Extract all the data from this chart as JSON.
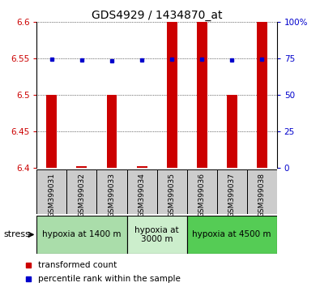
{
  "title": "GDS4929 / 1434870_at",
  "samples": [
    "GSM399031",
    "GSM399032",
    "GSM399033",
    "GSM399034",
    "GSM399035",
    "GSM399036",
    "GSM399037",
    "GSM399038"
  ],
  "red_values": [
    6.5,
    6.402,
    6.5,
    6.402,
    6.6,
    6.6,
    6.5,
    6.6
  ],
  "blue_values": [
    6.548,
    6.547,
    6.546,
    6.547,
    6.548,
    6.548,
    6.547,
    6.548
  ],
  "ymin": 6.4,
  "ymax": 6.6,
  "yticks_left": [
    6.4,
    6.45,
    6.5,
    6.55,
    6.6
  ],
  "yticks_right": [
    0,
    25,
    50,
    75,
    100
  ],
  "groups": [
    {
      "label": "hypoxia at 1400 m",
      "start": 0,
      "end": 3,
      "color": "#aaddaa"
    },
    {
      "label": "hypoxia at\n3000 m",
      "start": 3,
      "end": 5,
      "color": "#cceecc"
    },
    {
      "label": "hypoxia at 4500 m",
      "start": 5,
      "end": 8,
      "color": "#55cc55"
    }
  ],
  "red_color": "#cc0000",
  "blue_color": "#0000cc",
  "bar_width": 0.35,
  "title_fontsize": 10,
  "tick_fontsize": 7.5,
  "sample_fontsize": 6.5,
  "group_fontsize": 7.5,
  "legend_fontsize": 7.5,
  "stress_fontsize": 8,
  "legend_red": "transformed count",
  "legend_blue": "percentile rank within the sample",
  "background_color": "#ffffff",
  "sample_box_color": "#cccccc"
}
